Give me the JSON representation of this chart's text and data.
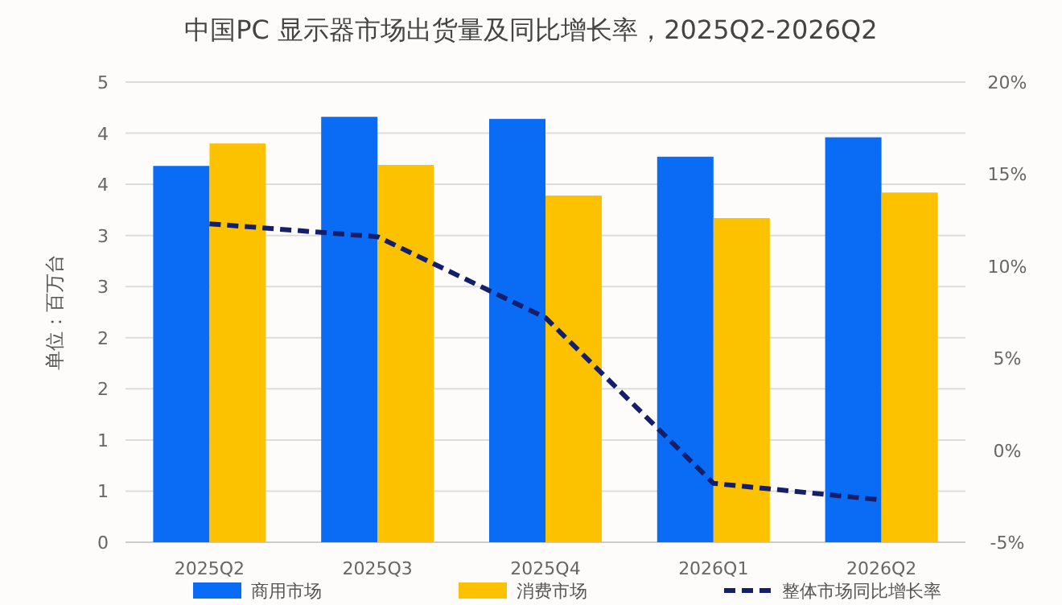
{
  "chart_data": {
    "type": "bar",
    "title": "中国PC 显示器市场出货量及同比增长率，2025Q2-2026Q2",
    "ylabel": "单位：百万台",
    "categories": [
      "2025Q2",
      "2025Q3",
      "2025Q4",
      "2026Q1",
      "2026Q2"
    ],
    "series": [
      {
        "name": "商用市场",
        "color": "#0a6cf5",
        "values": [
          3.68,
          4.16,
          4.14,
          3.77,
          3.96
        ]
      },
      {
        "name": "消费市场",
        "color": "#fcc200",
        "values": [
          3.9,
          3.69,
          3.39,
          3.17,
          3.42
        ]
      },
      {
        "name": "整体市场同比增长率",
        "type": "line",
        "axis": "y2",
        "color": "#141f6b",
        "line_style": "dashed",
        "marker": "none",
        "values": [
          12.3,
          11.6,
          7.2,
          -1.8,
          -2.7
        ]
      }
    ],
    "ylim": [
      0,
      4.5
    ],
    "yticks": [
      {
        "value": 0,
        "label": "0"
      },
      {
        "value": 0.5,
        "label": "1"
      },
      {
        "value": 1,
        "label": "1"
      },
      {
        "value": 1.5,
        "label": "2"
      },
      {
        "value": 2,
        "label": "2"
      },
      {
        "value": 2.5,
        "label": "3"
      },
      {
        "value": 3,
        "label": "3"
      },
      {
        "value": 3.5,
        "label": "4"
      },
      {
        "value": 4,
        "label": "4"
      },
      {
        "value": 4.5,
        "label": "5"
      }
    ],
    "y2lim": [
      -5,
      20
    ],
    "y2ticks": [
      {
        "value": -5,
        "label": "-5%"
      },
      {
        "value": 0,
        "label": "0%"
      },
      {
        "value": 5,
        "label": "5%"
      },
      {
        "value": 10,
        "label": "10%"
      },
      {
        "value": 15,
        "label": "15%"
      },
      {
        "value": 20,
        "label": "20%"
      }
    ],
    "grid": "y",
    "legend": "bottom"
  }
}
